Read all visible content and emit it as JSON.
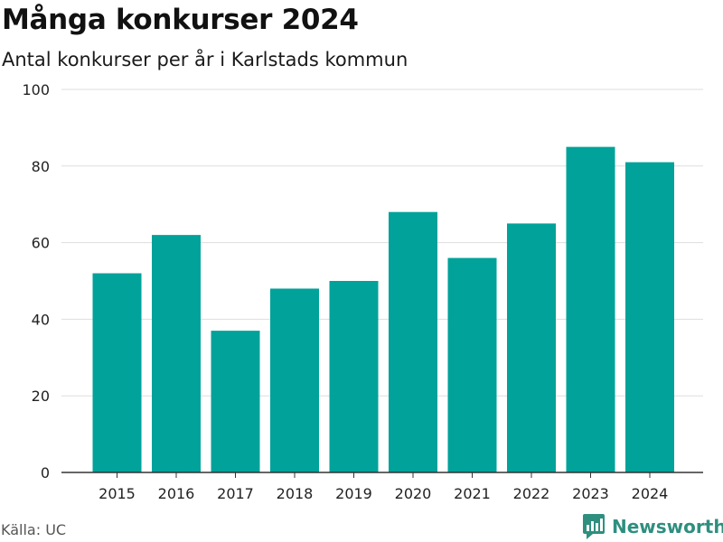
{
  "title": "Många konkurser 2024",
  "subtitle": "Antal konkurser per år i Karlstads kommun",
  "source": "Källa: UC",
  "brand": {
    "name": "Newsworthy",
    "icon": "newsworthy-logo-icon"
  },
  "colors": {
    "bar": "#00a29a",
    "grid": "#dddddd",
    "axis": "#333333",
    "brand": "#2f8f7f"
  },
  "chart_data": {
    "type": "bar",
    "categories": [
      "2015",
      "2016",
      "2017",
      "2018",
      "2019",
      "2020",
      "2021",
      "2022",
      "2023",
      "2024"
    ],
    "values": [
      52,
      62,
      37,
      48,
      50,
      68,
      56,
      65,
      85,
      81
    ],
    "ylim": [
      0,
      100
    ],
    "yticks": [
      0,
      20,
      40,
      60,
      80,
      100
    ],
    "grid": true,
    "legend": "none"
  }
}
